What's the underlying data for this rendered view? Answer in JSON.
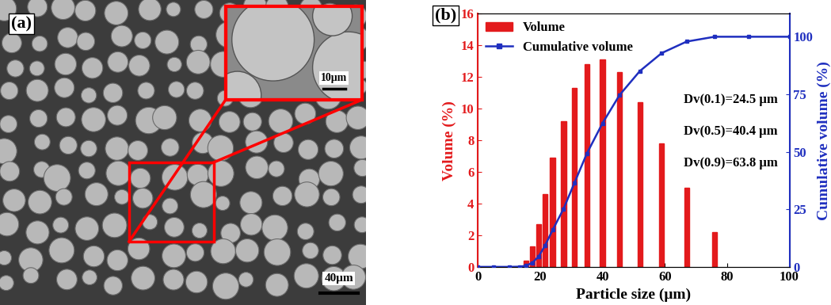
{
  "image": {
    "label": "(a)",
    "inset_scale_bar": "10μm",
    "scale_bar": "40μm"
  },
  "chart_data": {
    "type": "bar",
    "label": "(b)",
    "x_label": "Particle size (μm)",
    "y_label": "Volume (%)",
    "y2_label": "Cumulative volume (%)",
    "series": [
      {
        "name": "Volume",
        "type": "bar",
        "color": "#e31a1c",
        "x": [
          15.5,
          17.5,
          19.5,
          21.5,
          24,
          27.5,
          31,
          35,
          40,
          45.5,
          52,
          59,
          67,
          76
        ],
        "values": [
          0.4,
          1.3,
          2.7,
          4.6,
          6.9,
          9.2,
          11.3,
          12.8,
          13.1,
          12.3,
          10.4,
          7.8,
          5.0,
          2.2
        ]
      },
      {
        "name": "Cumulative volume",
        "type": "line",
        "axis": "y2",
        "color": "#1f2fbf",
        "marker": "square",
        "x": [
          0,
          5,
          10,
          13.5,
          15.5,
          17.5,
          19.5,
          21.5,
          24,
          27.5,
          31,
          35,
          40,
          45.5,
          52,
          59,
          67,
          76,
          87,
          100
        ],
        "values": [
          0,
          0,
          0,
          0.1,
          0.5,
          1.8,
          4.5,
          9.1,
          16,
          25.2,
          36.5,
          49.3,
          62.4,
          74.7,
          85.1,
          92.9,
          97.9,
          100,
          100,
          100
        ]
      }
    ],
    "annotations": [
      "Dv(0.1)=24.5 μm",
      "Dv(0.5)=40.4 μm",
      "Dv(0.9)=63.8 μm"
    ],
    "xlim": [
      0,
      100
    ],
    "xticks": [
      0,
      20,
      40,
      60,
      80,
      100
    ],
    "ylim": [
      0,
      16
    ],
    "yticks": [
      0,
      2,
      4,
      6,
      8,
      10,
      12,
      14,
      16
    ],
    "y2lim": [
      0,
      110
    ],
    "y2ticks": [
      0,
      25,
      50,
      75,
      100
    ],
    "legend": "upper left"
  }
}
